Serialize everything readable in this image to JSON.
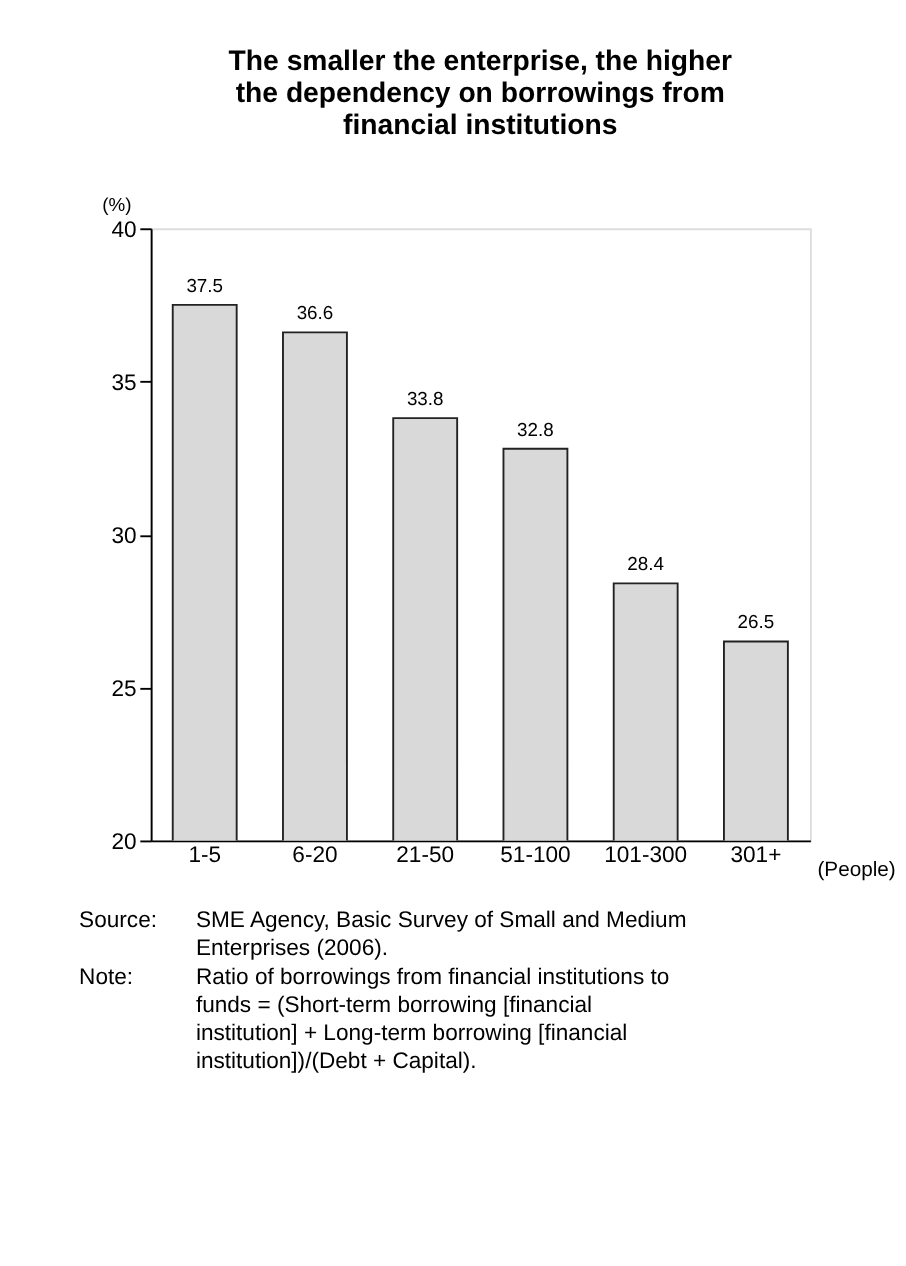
{
  "chart_data": {
    "type": "bar",
    "title": "The smaller the enterprise, the higher the dependency on borrowings from financial institutions",
    "categories": [
      "1-5",
      "6-20",
      "21-50",
      "51-100",
      "101-300",
      "301+"
    ],
    "values": [
      37.5,
      36.6,
      33.8,
      32.8,
      28.4,
      26.5
    ],
    "color": "#d9d9d9",
    "ylim": [
      20,
      40
    ],
    "yticks": [
      20,
      25,
      30,
      35,
      40
    ],
    "ylabel": "(%)",
    "xlabel": "(People)",
    "data_labels": true,
    "grid": false,
    "annotations": [
      "Source: SME Agency, Basic Survey of Small and Medium Enterprises (2006).",
      "Note: Ratio of borrowings from financial institutions to funds = (Short-term borrowing [financial institution] + Long-term borrowing [financial institution])/(Debt + Capital)."
    ]
  }
}
